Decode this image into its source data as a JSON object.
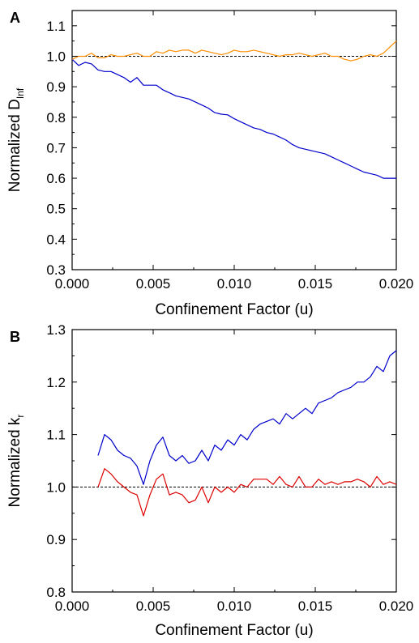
{
  "chart_data": [
    {
      "type": "line",
      "panel_label": "A",
      "xlabel": "Confinement Factor (u)",
      "ylabel": "Normalized D",
      "ylabel_sub": "Inf",
      "xlim": [
        0.0,
        0.02
      ],
      "ylim": [
        0.3,
        1.15
      ],
      "xticks": [
        "0.000",
        "0.005",
        "0.010",
        "0.015",
        "0.020"
      ],
      "yticks": [
        "0.3",
        "0.4",
        "0.5",
        "0.6",
        "0.7",
        "0.8",
        "0.9",
        "1.0",
        "1.1"
      ],
      "reference_line": 1.0,
      "grid": false,
      "series": [
        {
          "color": "#0000cc",
          "x": [
            0.0,
            0.0004,
            0.0008,
            0.0012,
            0.0016,
            0.002,
            0.0024,
            0.0028,
            0.0032,
            0.0036,
            0.004,
            0.0044,
            0.0048,
            0.0052,
            0.0056,
            0.006,
            0.0064,
            0.0068,
            0.0072,
            0.0076,
            0.008,
            0.0084,
            0.0088,
            0.0092,
            0.0096,
            0.01,
            0.0104,
            0.0108,
            0.0112,
            0.0116,
            0.012,
            0.0124,
            0.0128,
            0.0132,
            0.0136,
            0.014,
            0.0144,
            0.0148,
            0.0152,
            0.0156,
            0.016,
            0.0164,
            0.0168,
            0.0172,
            0.0176,
            0.018,
            0.0184,
            0.0188,
            0.0192,
            0.0196,
            0.02
          ],
          "y": [
            0.99,
            0.97,
            0.98,
            0.975,
            0.955,
            0.95,
            0.95,
            0.94,
            0.93,
            0.915,
            0.93,
            0.905,
            0.905,
            0.905,
            0.89,
            0.88,
            0.87,
            0.865,
            0.86,
            0.85,
            0.84,
            0.83,
            0.815,
            0.81,
            0.808,
            0.795,
            0.785,
            0.775,
            0.765,
            0.76,
            0.75,
            0.745,
            0.735,
            0.725,
            0.71,
            0.7,
            0.695,
            0.69,
            0.685,
            0.68,
            0.67,
            0.66,
            0.65,
            0.64,
            0.63,
            0.62,
            0.615,
            0.61,
            0.6,
            0.6,
            0.6
          ]
        },
        {
          "color": "#ff8c00",
          "x": [
            0.0,
            0.0004,
            0.0008,
            0.0012,
            0.0016,
            0.002,
            0.0024,
            0.0028,
            0.0032,
            0.0036,
            0.004,
            0.0044,
            0.0048,
            0.0052,
            0.0056,
            0.006,
            0.0064,
            0.0068,
            0.0072,
            0.0076,
            0.008,
            0.0084,
            0.0088,
            0.0092,
            0.0096,
            0.01,
            0.0104,
            0.0108,
            0.0112,
            0.0116,
            0.012,
            0.0124,
            0.0128,
            0.0132,
            0.0136,
            0.014,
            0.0144,
            0.0148,
            0.0152,
            0.0156,
            0.016,
            0.0164,
            0.0168,
            0.0172,
            0.0176,
            0.018,
            0.0184,
            0.0188,
            0.0192,
            0.0196,
            0.02
          ],
          "y": [
            0.99,
            1.0,
            1.0,
            1.01,
            0.995,
            0.995,
            1.005,
            1.0,
            1.0,
            1.005,
            1.01,
            1.0,
            1.0,
            1.015,
            1.01,
            1.02,
            1.015,
            1.02,
            1.02,
            1.01,
            1.02,
            1.015,
            1.01,
            1.005,
            1.01,
            1.02,
            1.015,
            1.015,
            1.02,
            1.015,
            1.01,
            1.005,
            1.0,
            1.005,
            1.005,
            1.01,
            1.005,
            1.0,
            1.005,
            1.01,
            1.0,
            1.0,
            0.99,
            0.985,
            0.99,
            1.0,
            1.005,
            1.0,
            1.01,
            1.03,
            1.05
          ]
        }
      ]
    },
    {
      "type": "line",
      "panel_label": "B",
      "xlabel": "Confinement Factor (u)",
      "ylabel": "Normalized k",
      "ylabel_sub": "r",
      "xlim": [
        0.0,
        0.02
      ],
      "ylim": [
        0.8,
        1.3
      ],
      "xticks": [
        "0.000",
        "0.005",
        "0.010",
        "0.015",
        "0.020"
      ],
      "yticks": [
        "0.8",
        "0.9",
        "1.0",
        "1.1",
        "1.2",
        "1.3"
      ],
      "reference_line": 1.0,
      "grid": false,
      "series": [
        {
          "color": "#0000cc",
          "x": [
            0.0016,
            0.002,
            0.0024,
            0.0028,
            0.0032,
            0.0036,
            0.004,
            0.0044,
            0.0048,
            0.0052,
            0.0056,
            0.006,
            0.0064,
            0.0068,
            0.0072,
            0.0076,
            0.008,
            0.0084,
            0.0088,
            0.0092,
            0.0096,
            0.01,
            0.0104,
            0.0108,
            0.0112,
            0.0116,
            0.012,
            0.0124,
            0.0128,
            0.0132,
            0.0136,
            0.014,
            0.0144,
            0.0148,
            0.0152,
            0.0156,
            0.016,
            0.0164,
            0.0168,
            0.0172,
            0.0176,
            0.018,
            0.0184,
            0.0188,
            0.0192,
            0.0196,
            0.02
          ],
          "y": [
            1.06,
            1.1,
            1.09,
            1.07,
            1.06,
            1.055,
            1.04,
            1.005,
            1.05,
            1.08,
            1.095,
            1.06,
            1.05,
            1.06,
            1.045,
            1.05,
            1.07,
            1.05,
            1.08,
            1.07,
            1.09,
            1.08,
            1.1,
            1.09,
            1.11,
            1.12,
            1.125,
            1.13,
            1.12,
            1.14,
            1.13,
            1.14,
            1.15,
            1.14,
            1.16,
            1.165,
            1.17,
            1.18,
            1.185,
            1.19,
            1.2,
            1.2,
            1.21,
            1.23,
            1.22,
            1.25,
            1.26
          ]
        },
        {
          "color": "#dd0000",
          "x": [
            0.0016,
            0.002,
            0.0024,
            0.0028,
            0.0032,
            0.0036,
            0.004,
            0.0044,
            0.0048,
            0.0052,
            0.0056,
            0.006,
            0.0064,
            0.0068,
            0.0072,
            0.0076,
            0.008,
            0.0084,
            0.0088,
            0.0092,
            0.0096,
            0.01,
            0.0104,
            0.0108,
            0.0112,
            0.0116,
            0.012,
            0.0124,
            0.0128,
            0.0132,
            0.0136,
            0.014,
            0.0144,
            0.0148,
            0.0152,
            0.0156,
            0.016,
            0.0164,
            0.0168,
            0.0172,
            0.0176,
            0.018,
            0.0184,
            0.0188,
            0.0192,
            0.0196,
            0.02
          ],
          "y": [
            1.0,
            1.035,
            1.025,
            1.01,
            1.0,
            0.99,
            0.985,
            0.945,
            0.985,
            1.015,
            1.025,
            0.985,
            0.99,
            0.985,
            0.97,
            0.975,
            1.0,
            0.97,
            1.0,
            0.99,
            1.0,
            0.99,
            1.005,
            1.0,
            1.015,
            1.015,
            1.015,
            1.005,
            1.02,
            1.005,
            1.0,
            1.02,
            1.0,
            1.0,
            1.015,
            1.005,
            1.01,
            1.005,
            1.01,
            1.01,
            1.015,
            1.01,
            1.0,
            1.02,
            1.005,
            1.01,
            1.005
          ]
        }
      ]
    }
  ]
}
